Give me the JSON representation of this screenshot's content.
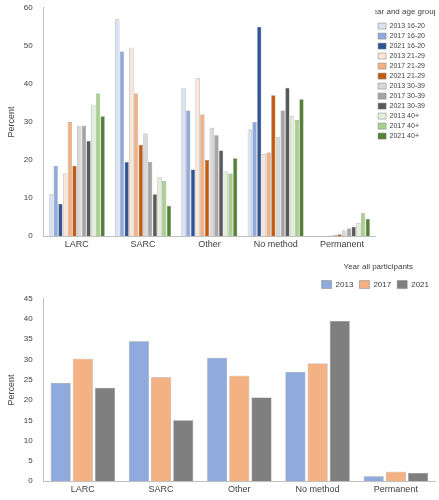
{
  "chart_data": [
    {
      "type": "bar",
      "y_label": "Percent",
      "legend": "right",
      "legend_title": "Year and age groups",
      "grid": false,
      "categories": [
        "LARC",
        "SARC",
        "Other",
        "No method",
        "Permanent"
      ],
      "ylim": [
        0,
        60
      ],
      "yticks": [
        0,
        10,
        20,
        30,
        40,
        50,
        60
      ],
      "series": [
        {
          "name": "2013 16-20",
          "color": "#dae3f3",
          "values": [
            11,
            57,
            39,
            28,
            0
          ]
        },
        {
          "name": "2017 16-20",
          "color": "#8faadc",
          "values": [
            18.5,
            48.5,
            33,
            30,
            0
          ]
        },
        {
          "name": "2021 16-20",
          "color": "#2f5597",
          "values": [
            8.5,
            19.5,
            17.5,
            55,
            0
          ]
        },
        {
          "name": "2013 21-29",
          "color": "#fbe5d6",
          "values": [
            16.5,
            49.5,
            41.5,
            21.5,
            0.2
          ]
        },
        {
          "name": "2017 21-29",
          "color": "#f4b183",
          "values": [
            30,
            37.5,
            32,
            22,
            0.3
          ]
        },
        {
          "name": "2021 21-29",
          "color": "#c55a11",
          "values": [
            18.5,
            24,
            20,
            37,
            0.5
          ]
        },
        {
          "name": "2013 30-39",
          "color": "#d9d9d9",
          "values": [
            29,
            27,
            28.5,
            26,
            1.5
          ]
        },
        {
          "name": "2017 30-39",
          "color": "#a5a5a5",
          "values": [
            29,
            19.5,
            26.5,
            33,
            2
          ]
        },
        {
          "name": "2021 30-39",
          "color": "#595959",
          "values": [
            25,
            11,
            22.5,
            39,
            2.5
          ]
        },
        {
          "name": "2013 40+",
          "color": "#e2f0d9",
          "values": [
            34.5,
            15.5,
            17,
            31.5,
            3.5
          ]
        },
        {
          "name": "2017 40+",
          "color": "#a9d18e",
          "values": [
            37.5,
            14.5,
            16.5,
            30.5,
            6
          ]
        },
        {
          "name": "2021 40+",
          "color": "#548235",
          "values": [
            31.5,
            8,
            20.5,
            36,
            4.5
          ]
        }
      ]
    },
    {
      "type": "bar",
      "y_label": "Percent",
      "legend": "top",
      "legend_title": "Year all participants",
      "grid": false,
      "categories": [
        "LARC",
        "SARC",
        "Other",
        "No method",
        "Permanent"
      ],
      "ylim": [
        0,
        45
      ],
      "yticks": [
        0,
        5,
        10,
        15,
        20,
        25,
        30,
        35,
        40,
        45
      ],
      "series": [
        {
          "name": "2013",
          "color": "#8faadc",
          "values": [
            24.2,
            34.5,
            30.4,
            26.9,
            1.2
          ]
        },
        {
          "name": "2017",
          "color": "#f4b183",
          "values": [
            30.2,
            25.6,
            26,
            29,
            2.3
          ]
        },
        {
          "name": "2021",
          "color": "#7f7f7f",
          "values": [
            23,
            15,
            20.6,
            39.5,
            2
          ]
        }
      ]
    }
  ]
}
